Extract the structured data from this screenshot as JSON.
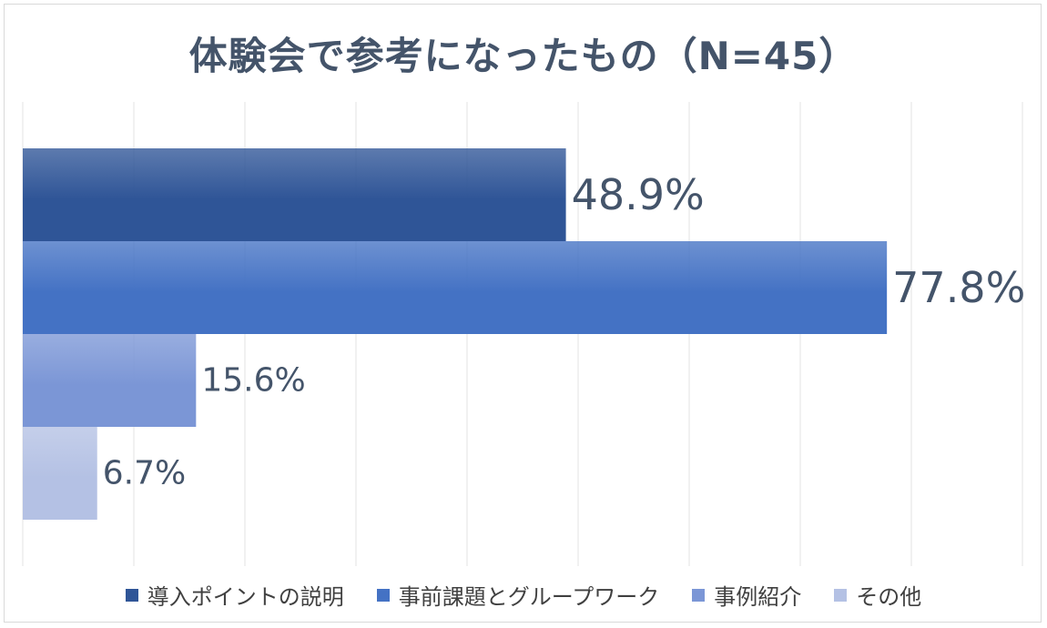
{
  "chart_data": {
    "type": "bar",
    "orientation": "horizontal",
    "title": "体験会で参考になったもの（N=45）",
    "unit": "%",
    "xlim": [
      0,
      90
    ],
    "grid": true,
    "legend_position": "bottom",
    "series": [
      {
        "name": "導入ポイントの説明",
        "value": 48.9,
        "label": "48.9%",
        "color": "#2f5597"
      },
      {
        "name": "事前課題とグループワーク",
        "value": 77.8,
        "label": "77.8%",
        "color": "#4472c4"
      },
      {
        "name": "事例紹介",
        "value": 15.6,
        "label": "15.6%",
        "color": "#7b96d6"
      },
      {
        "name": "その他",
        "value": 6.7,
        "label": "6.7%",
        "color": "#b4c1e4"
      }
    ]
  }
}
